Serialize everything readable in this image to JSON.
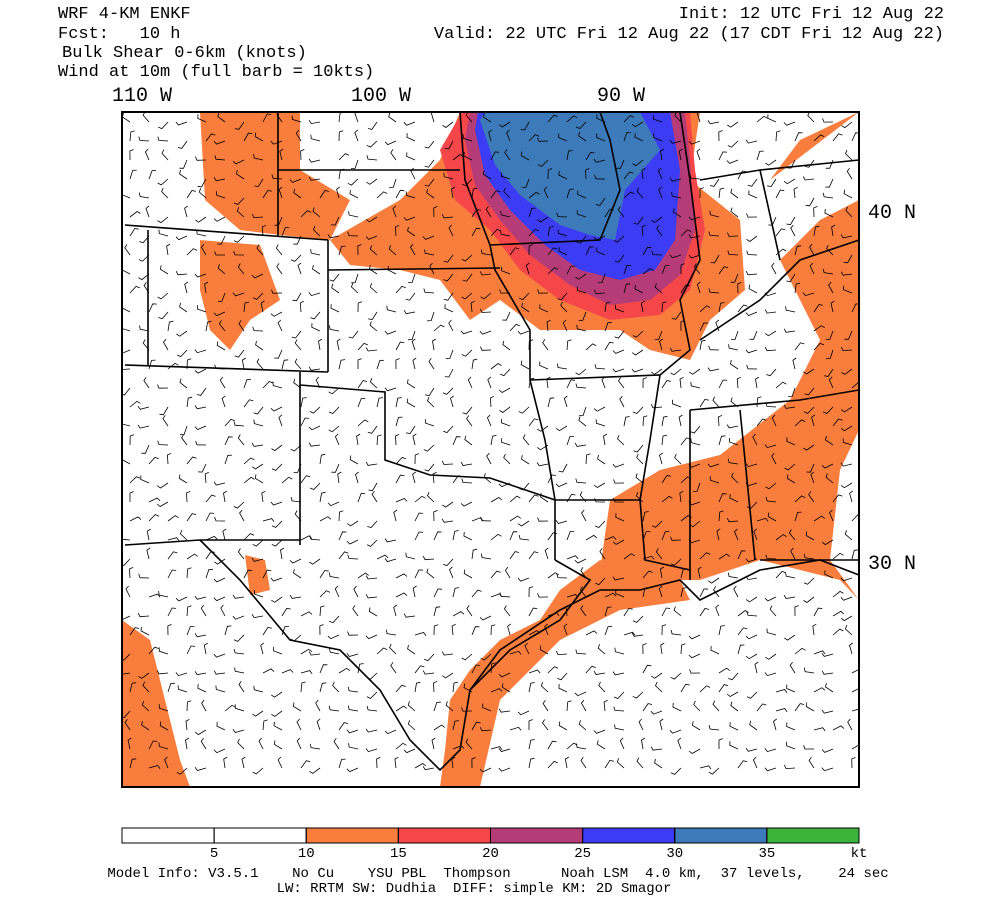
{
  "header": {
    "model": "WRF 4-KM ENKF",
    "forecast": "Fcst:   10 h",
    "field": "Bulk Shear 0-6km (knots)",
    "wind": "Wind at 10m (full barb = 10kts)",
    "init": "Init: 12 UTC Fri 12 Aug 22",
    "valid": "Valid: 22 UTC Fri 12 Aug 22 (17 CDT Fri 12 Aug 22)"
  },
  "map": {
    "longitude_labels": [
      "110 W",
      "100 W",
      "90 W"
    ],
    "latitude_labels": [
      "40 N",
      "30 N"
    ]
  },
  "colorbar": {
    "ticks": [
      5,
      10,
      15,
      20,
      25,
      30,
      35
    ],
    "unit": "kt",
    "colors": [
      "#ffffff",
      "#ffffff",
      "#f97d3c",
      "#f5474a",
      "#b63c78",
      "#3c3cf5",
      "#3c7ab9",
      "#3cb43c"
    ]
  },
  "footer": {
    "line1": "Model Info: V3.5.1    No Cu    YSU PBL  Thompson      Noah LSM  4.0 km,  37 levels,    24 sec",
    "line2": "LW: RRTM SW: Dudhia  DIFF: simple KM: 2D Smagor"
  }
}
